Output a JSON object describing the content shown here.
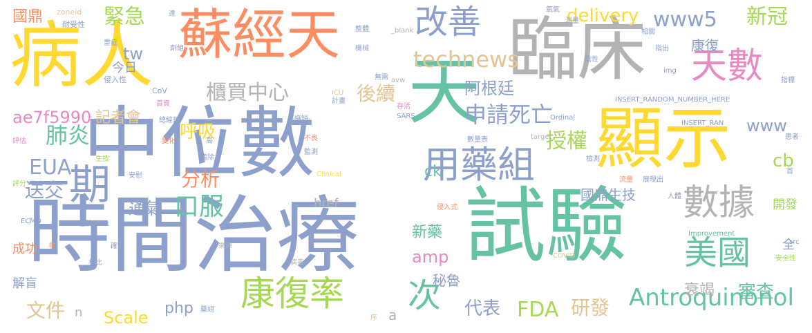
{
  "palette": {
    "orange": "#fc8d62",
    "blue": "#8da0cb",
    "green": "#66c2a5",
    "yellow": "#ffd92f",
    "gray": "#b3b3b3",
    "pink": "#e78ac3",
    "lime": "#a6d854",
    "tan": "#e5c494"
  },
  "words": [
    {
      "text": "中位數",
      "color": "blue"
    },
    {
      "text": "時間治療",
      "color": "blue"
    },
    {
      "text": "試驗",
      "color": "green"
    },
    {
      "text": "天",
      "color": "green"
    },
    {
      "text": "臨床",
      "color": "gray"
    },
    {
      "text": "病人",
      "color": "yellow"
    },
    {
      "text": "蘇經天",
      "color": "orange"
    },
    {
      "text": "顯示",
      "color": "yellow"
    },
    {
      "text": "用藥組",
      "color": "blue"
    },
    {
      "text": "改善",
      "color": "blue"
    },
    {
      "text": "天數",
      "color": "pink"
    },
    {
      "text": "康復率",
      "color": "lime"
    },
    {
      "text": "數據",
      "color": "gray"
    },
    {
      "text": "美國",
      "color": "green"
    },
    {
      "text": "一期",
      "color": "blue"
    },
    {
      "text": "櫃買中心",
      "color": "gray"
    },
    {
      "text": "新冠",
      "color": "lime"
    },
    {
      "text": "緊急",
      "color": "lime"
    },
    {
      "text": "www5",
      "color": "blue"
    },
    {
      "text": "technews",
      "color": "tan"
    },
    {
      "text": "delivery",
      "color": "yellow"
    },
    {
      "text": "肺炎",
      "color": "green"
    },
    {
      "text": "口服",
      "color": "green"
    },
    {
      "text": "申請死亡",
      "color": "blue"
    },
    {
      "text": "授權",
      "color": "lime"
    },
    {
      "text": "Antroquinonol",
      "color": "green"
    },
    {
      "text": "次",
      "color": "green"
    },
    {
      "text": "送交",
      "color": "blue"
    },
    {
      "text": "EUA",
      "color": "blue"
    },
    {
      "text": "分析",
      "color": "orange"
    },
    {
      "text": "後續",
      "color": "tan"
    },
    {
      "text": "呼吸",
      "color": "yellow"
    },
    {
      "text": "記者會",
      "color": "tan"
    },
    {
      "text": "ae7f5990",
      "color": "pink"
    },
    {
      "text": "阿根廷",
      "color": "blue"
    },
    {
      "text": "通氣",
      "color": "blue"
    },
    {
      "text": "文件",
      "color": "tan"
    },
    {
      "text": "Scale",
      "color": "yellow"
    },
    {
      "text": "php",
      "color": "blue"
    },
    {
      "text": "代表",
      "color": "blue"
    },
    {
      "text": "FDA",
      "color": "lime"
    },
    {
      "text": "研發",
      "color": "tan"
    },
    {
      "text": "衰竭",
      "color": "gray"
    },
    {
      "text": "審查",
      "color": "green"
    },
    {
      "text": "國鼎生技",
      "color": "blue"
    },
    {
      "text": "新藥",
      "color": "green"
    },
    {
      "text": "amp",
      "color": "pink"
    },
    {
      "text": "秘魯",
      "color": "blue"
    },
    {
      "text": "www",
      "color": "blue"
    },
    {
      "text": "tw",
      "color": "blue"
    },
    {
      "text": "國鼎",
      "color": "orange"
    },
    {
      "text": "康復",
      "color": "blue"
    },
    {
      "text": "cb",
      "color": "lime"
    },
    {
      "text": "ck",
      "color": "green"
    },
    {
      "text": "href",
      "color": "gray"
    },
    {
      "text": "全",
      "color": "blue"
    },
    {
      "text": "開發",
      "color": "lime"
    },
    {
      "text": "解盲",
      "color": "blue"
    },
    {
      "text": "成功",
      "color": "orange"
    },
    {
      "text": "今日",
      "color": "blue"
    },
    {
      "text": "n",
      "color": "gray"
    },
    {
      "text": "a",
      "color": "gray"
    },
    {
      "text": "zoneid",
      "color": "tan"
    },
    {
      "text": "耐受性",
      "color": "blue"
    },
    {
      "text": "重症",
      "color": "blue"
    },
    {
      "text": "侵入性",
      "color": "blue"
    },
    {
      "text": "CoV",
      "color": "blue"
    },
    {
      "text": "首頁",
      "color": "pink"
    },
    {
      "text": "總經理",
      "color": "blue"
    },
    {
      "text": "縮短",
      "color": "blue"
    },
    {
      "text": "不良",
      "color": "orange"
    },
    {
      "text": "監測",
      "color": "blue"
    },
    {
      "text": "ICU",
      "color": "tan"
    },
    {
      "text": "計畫",
      "color": "blue"
    },
    {
      "text": "SARS",
      "color": "blue"
    },
    {
      "text": "存活",
      "color": "pink"
    },
    {
      "text": "avw",
      "color": "gray"
    },
    {
      "text": "無需",
      "color": "blue"
    },
    {
      "text": "_blank",
      "color": "gray"
    },
    {
      "text": "整體",
      "color": "blue"
    },
    {
      "text": "機械",
      "color": "blue"
    },
    {
      "text": "達",
      "color": "blue"
    },
    {
      "text": "氧氣",
      "color": "blue"
    },
    {
      "text": "測量",
      "color": "blue"
    },
    {
      "text": "相關",
      "color": "blue"
    },
    {
      "text": "指出",
      "color": "blue"
    },
    {
      "text": "陰性",
      "color": "blue"
    },
    {
      "text": "img",
      "color": "blue"
    },
    {
      "text": "指標",
      "color": "blue"
    },
    {
      "text": "INSERT_RANDOM_NUMBER_HERE",
      "color": "blue"
    },
    {
      "text": "INSERT_RAN",
      "color": "blue"
    },
    {
      "text": "Ordinal",
      "color": "blue"
    },
    {
      "text": "target",
      "color": "gray"
    },
    {
      "text": "數量表",
      "color": "blue"
    },
    {
      "text": "檢測",
      "color": "blue"
    },
    {
      "text": "患者",
      "color": "blue"
    },
    {
      "text": "首",
      "color": "blue"
    },
    {
      "text": "流量",
      "color": "orange"
    },
    {
      "text": "展現出",
      "color": "blue"
    },
    {
      "text": "人體",
      "color": "blue"
    },
    {
      "text": "Clinical",
      "color": "yellow"
    },
    {
      "text": "評估",
      "color": "pink"
    },
    {
      "text": "生技",
      "color": "lime"
    },
    {
      "text": "評分",
      "color": "lime"
    },
    {
      "text": "變化",
      "color": "orange"
    },
    {
      "text": "高",
      "color": "blue"
    },
    {
      "text": "清除",
      "color": "blue"
    },
    {
      "text": "安慰",
      "color": "blue"
    },
    {
      "text": "ECMO",
      "color": "blue"
    },
    {
      "text": "住院",
      "color": "blue"
    },
    {
      "text": "PCR",
      "color": "blue"
    },
    {
      "text": "非",
      "color": "orange"
    },
    {
      "text": "確實",
      "color": "blue"
    },
    {
      "text": "來源",
      "color": "gray"
    },
    {
      "text": "病毒",
      "color": "gray"
    },
    {
      "text": "相比",
      "color": "blue"
    },
    {
      "text": "侵入式",
      "color": "orange"
    },
    {
      "text": "Improvement",
      "color": "green"
    },
    {
      "text": "COVID",
      "color": "tan"
    },
    {
      "text": "src",
      "color": "blue"
    },
    {
      "text": "安全性",
      "color": "lime"
    },
    {
      "text": "藥組",
      "color": "blue"
    },
    {
      "text": "序",
      "color": "tan"
    },
    {
      "text": "劑組",
      "color": "blue"
    }
  ]
}
